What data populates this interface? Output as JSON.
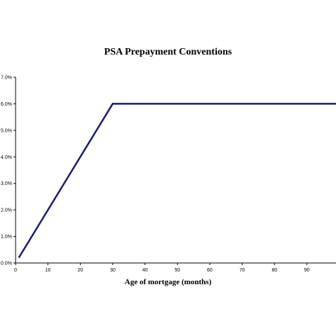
{
  "chart_data": {
    "type": "line",
    "title": "PSA Prepayment Conventions",
    "xlabel": "Age of mortgage (months)",
    "ylabel": "",
    "x_ticks": [
      0,
      10,
      20,
      30,
      40,
      50,
      60,
      70,
      80,
      90
    ],
    "y_ticks": [
      0,
      0.01,
      0.02,
      0.03,
      0.04,
      0.05,
      0.06,
      0.07
    ],
    "y_tick_labels": [
      "0.0%",
      "1.0%",
      "2.0%",
      "3.0%",
      "4.0%",
      "5.0%",
      "6.0%",
      "7.0%"
    ],
    "xlim": [
      0,
      99
    ],
    "ylim": [
      0,
      0.07
    ],
    "grid": false,
    "legend": "none",
    "series": [
      {
        "color": "#1a1f6e",
        "x": [
          1,
          30,
          99
        ],
        "y": [
          0.002,
          0.06,
          0.06
        ]
      }
    ]
  }
}
